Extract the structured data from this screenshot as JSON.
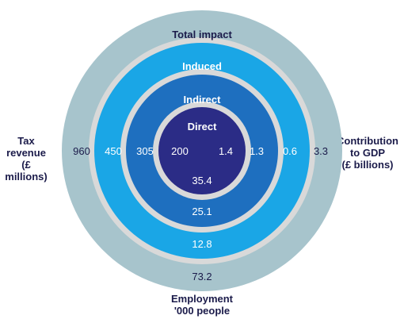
{
  "rings": [
    {
      "name": "Total impact",
      "tax": "960",
      "gdp": "3.3",
      "employment": "73.2",
      "fill": "#a7c4cc",
      "text": "#1b1b4a"
    },
    {
      "name": "Induced",
      "tax": "450",
      "gdp": "0.6",
      "employment": "12.8",
      "fill": "#1aa6e6",
      "text": "#ffffff"
    },
    {
      "name": "Indirect",
      "tax": "305",
      "gdp": "1.3",
      "employment": "25.1",
      "fill": "#1e6fbf",
      "text": "#ffffff"
    },
    {
      "name": "Direct",
      "tax": "200",
      "gdp": "1.4",
      "employment": "35.4",
      "fill": "#2b2c86",
      "text": "#ffffff"
    }
  ],
  "separator_color": "#d9d9d9",
  "labels": {
    "tax": "Tax\nrevenue\n(£ millions)",
    "gdp": "Contribution\nto GDP\n(£ billions)",
    "employment": "Employment\n'000 people"
  }
}
